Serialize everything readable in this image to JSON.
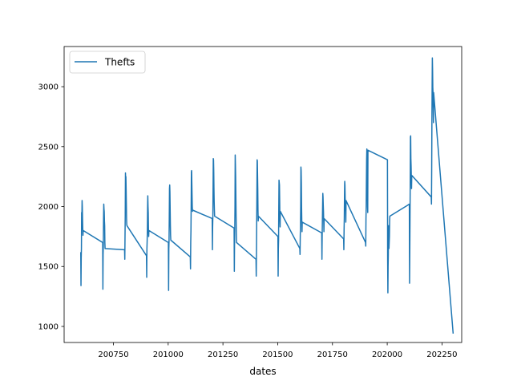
{
  "chart_data": {
    "type": "line",
    "title": "",
    "xlabel": "dates",
    "ylabel": "",
    "xlim": [
      200525,
      202340
    ],
    "ylim": [
      866,
      3335
    ],
    "x_ticks": [
      200750,
      201000,
      201250,
      201500,
      201750,
      202000,
      202250
    ],
    "x_tick_labels": [
      "200750",
      "201000",
      "201250",
      "201500",
      "201750",
      "202000",
      "202250"
    ],
    "y_ticks": [
      1000,
      1500,
      2000,
      2500,
      3000
    ],
    "y_tick_labels": [
      "1000",
      "1500",
      "2000",
      "2500",
      "3000"
    ],
    "legend": {
      "position": "top-left",
      "entries": [
        "Thefts"
      ]
    },
    "grid": false,
    "colors": {
      "series": "#1f77b4",
      "axes": "#000000",
      "background": "#ffffff"
    },
    "series": [
      {
        "name": "Thefts",
        "x": [
          200601,
          200602,
          200603,
          200604,
          200605,
          200606,
          200607,
          200608,
          200609,
          200610,
          200611,
          200612,
          200701,
          200702,
          200703,
          200704,
          200705,
          200706,
          200707,
          200708,
          200709,
          200710,
          200711,
          200712,
          200801,
          200802,
          200803,
          200804,
          200805,
          200806,
          200807,
          200808,
          200809,
          200810,
          200811,
          200812,
          200901,
          200902,
          200903,
          200904,
          200905,
          200906,
          200907,
          200908,
          200909,
          200910,
          200911,
          200912,
          201001,
          201002,
          201003,
          201004,
          201005,
          201006,
          201007,
          201008,
          201009,
          201010,
          201011,
          201012,
          201101,
          201102,
          201103,
          201104,
          201105,
          201106,
          201107,
          201108,
          201109,
          201110,
          201111,
          201112,
          201201,
          201202,
          201203,
          201204,
          201205,
          201206,
          201207,
          201208,
          201209,
          201210,
          201211,
          201212,
          201301,
          201302,
          201303,
          201304,
          201305,
          201306,
          201307,
          201308,
          201309,
          201310,
          201311,
          201312,
          201401,
          201402,
          201403,
          201404,
          201405,
          201406,
          201407,
          201408,
          201409,
          201410,
          201411,
          201412,
          201501,
          201502,
          201503,
          201504,
          201505,
          201506,
          201507,
          201508,
          201509,
          201510,
          201511,
          201512,
          201601,
          201602,
          201603,
          201604,
          201605,
          201606,
          201607,
          201608,
          201609,
          201610,
          201611,
          201612,
          201701,
          201702,
          201703,
          201704,
          201705,
          201706,
          201707,
          201708,
          201709,
          201710,
          201711,
          201712,
          201801,
          201802,
          201803,
          201804,
          201805,
          201806,
          201807,
          201808,
          201809,
          201810,
          201811,
          201812,
          201901,
          201902,
          201903,
          201904,
          201905,
          201906,
          201907,
          201908,
          201909,
          201910,
          201911,
          201912,
          202001,
          202002,
          202003,
          202004,
          202005,
          202006,
          202007,
          202008,
          202009,
          202010,
          202011,
          202012,
          202101,
          202102,
          202103,
          202104,
          202105,
          202106,
          202107,
          202108,
          202109,
          202110,
          202111,
          202112,
          202201,
          202202,
          202203,
          202204,
          202205,
          202206,
          202207,
          202208,
          202209,
          202210,
          202211,
          202212,
          202301
        ],
        "y": [
          1620,
          1340,
          1570,
          1650,
          1950,
          1900,
          2050,
          2000,
          1900,
          1820,
          1760,
          1800,
          1700,
          1310,
          1600,
          1680,
          1900,
          2020,
          1980,
          1960,
          1880,
          1840,
          1700,
          1650,
          1640,
          1560,
          1750,
          1920,
          2280,
          2220,
          2250,
          2150,
          2030,
          1900,
          1850,
          1840,
          1590,
          1410,
          1650,
          1710,
          1800,
          1990,
          2090,
          2000,
          1950,
          1800,
          1750,
          1800,
          1700,
          1300,
          1650,
          1720,
          1900,
          2150,
          2180,
          2120,
          1980,
          1850,
          1760,
          1720,
          1580,
          1480,
          1700,
          1800,
          2000,
          2290,
          2300,
          2200,
          2100,
          2000,
          1960,
          1970,
          1900,
          1640,
          1830,
          1920,
          2150,
          2400,
          2390,
          2300,
          2150,
          2040,
          1970,
          1920,
          1820,
          1460,
          1700,
          1800,
          2000,
          2430,
          2350,
          2250,
          2100,
          1940,
          1800,
          1700,
          1560,
          1420,
          1600,
          1850,
          2100,
          2390,
          2380,
          2270,
          2150,
          1970,
          1880,
          1920,
          1750,
          1420,
          1650,
          1720,
          1990,
          2220,
          2200,
          2180,
          2050,
          1890,
          1830,
          1960,
          1650,
          1600,
          1750,
          1850,
          2000,
          2330,
          2300,
          2200,
          2000,
          1870,
          1790,
          1870,
          1780,
          1560,
          1750,
          1880,
          2000,
          2110,
          2080,
          2010,
          1960,
          1880,
          1790,
          1900,
          1730,
          1640,
          1800,
          1900,
          2100,
          2210,
          2180,
          2070,
          2000,
          1960,
          1870,
          2050,
          1700,
          1670,
          1900,
          2000,
          2210,
          2400,
          2480,
          2350,
          2200,
          2000,
          1950,
          2470,
          2390,
          1550,
          1280,
          1500,
          1600,
          1840,
          1800,
          1650,
          1700,
          1750,
          1880,
          1920,
          2020,
          1360,
          1600,
          1900,
          2200,
          2580,
          2590,
          2400,
          2340,
          2250,
          2150,
          2260,
          2080,
          2020,
          2300,
          2700,
          3000,
          3240,
          3150,
          3000,
          2950,
          2850,
          2700,
          2950,
          940
        ]
      }
    ]
  }
}
